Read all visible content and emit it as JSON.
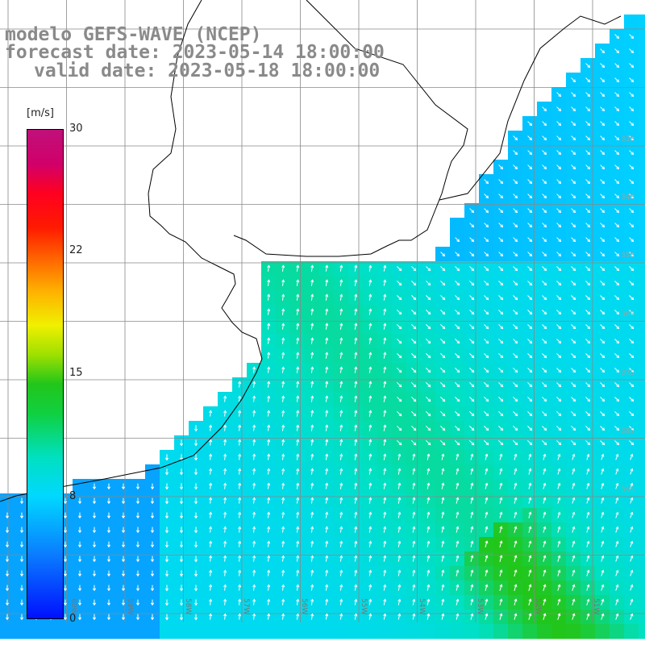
{
  "title": {
    "line1": "modelo GEFS-WAVE (NCEP)",
    "line2": "forecast date: 2023-05-14 18:00:00",
    "line3": "valid date: 2023-05-18 18:00:00"
  },
  "colorbar": {
    "units": "[m/s]",
    "ticks": [
      "30",
      "22",
      "15",
      "8",
      "0"
    ],
    "range": [
      0,
      30
    ],
    "colors": [
      "#0010ff",
      "#0a7cff",
      "#00d8ff",
      "#00e0c0",
      "#22c61a",
      "#f0f000",
      "#ff6000",
      "#ff1a00",
      "#c0107a"
    ]
  },
  "map": {
    "projection": "lat-lon",
    "grid": true,
    "grid_color": "#888888",
    "coastline_color": "#000000",
    "lon_labels": [
      "60W",
      "59W",
      "58W",
      "57W",
      "56W",
      "55W",
      "54W",
      "53W",
      "52W",
      "51W"
    ],
    "lat_labels": [
      "33S",
      "34S",
      "35S",
      "36S",
      "37S",
      "38S",
      "39S"
    ],
    "field": "wind speed and direction",
    "arrow_color": "#ffffff"
  }
}
